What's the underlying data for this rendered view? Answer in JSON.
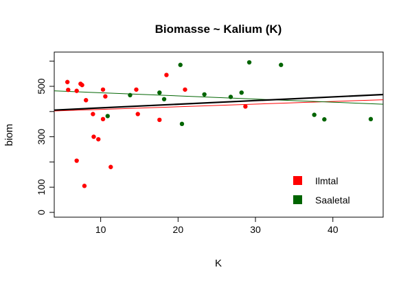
{
  "chart_data": {
    "type": "scatter",
    "title": "Biomasse ~ Kalium (K)",
    "xlabel": "K",
    "ylabel": "biom",
    "xlim": [
      4,
      46.5
    ],
    "ylim": [
      -20,
      620
    ],
    "x_ticks": [
      10,
      20,
      30,
      40
    ],
    "y_ticks": [
      0,
      100,
      200,
      300,
      400,
      500,
      600
    ],
    "y_tick_labels": [
      "0",
      "100",
      "",
      "300",
      "",
      "500",
      ""
    ],
    "legend_position": "bottom-right",
    "series": [
      {
        "name": "Ilmtal",
        "color": "#ff0000",
        "points": [
          [
            5.7,
            517
          ],
          [
            5.8,
            486
          ],
          [
            6.9,
            482
          ],
          [
            7.4,
            510
          ],
          [
            7.6,
            505
          ],
          [
            8.1,
            445
          ],
          [
            6.9,
            205
          ],
          [
            7.9,
            105
          ],
          [
            9.0,
            390
          ],
          [
            9.1,
            300
          ],
          [
            9.7,
            290
          ],
          [
            10.3,
            487
          ],
          [
            10.3,
            370
          ],
          [
            10.6,
            460
          ],
          [
            11.3,
            180
          ],
          [
            14.6,
            487
          ],
          [
            14.8,
            390
          ],
          [
            17.6,
            367
          ],
          [
            18.5,
            545
          ],
          [
            20.9,
            487
          ],
          [
            28.7,
            420
          ]
        ],
        "fit": {
          "intercept": 398,
          "slope": 1.05
        }
      },
      {
        "name": "Saaletal",
        "color": "#006400",
        "points": [
          [
            10.9,
            382
          ],
          [
            13.8,
            465
          ],
          [
            17.6,
            475
          ],
          [
            18.2,
            449
          ],
          [
            20.3,
            585
          ],
          [
            20.5,
            351
          ],
          [
            23.4,
            468
          ],
          [
            26.8,
            458
          ],
          [
            28.2,
            475
          ],
          [
            29.2,
            595
          ],
          [
            33.3,
            585
          ],
          [
            37.6,
            387
          ],
          [
            38.9,
            369
          ],
          [
            44.9,
            370
          ]
        ],
        "fit": {
          "intercept": 487,
          "slope": -1.25
        }
      }
    ],
    "overall_fit": {
      "intercept": 400,
      "slope": 1.45,
      "color": "#000000"
    }
  }
}
